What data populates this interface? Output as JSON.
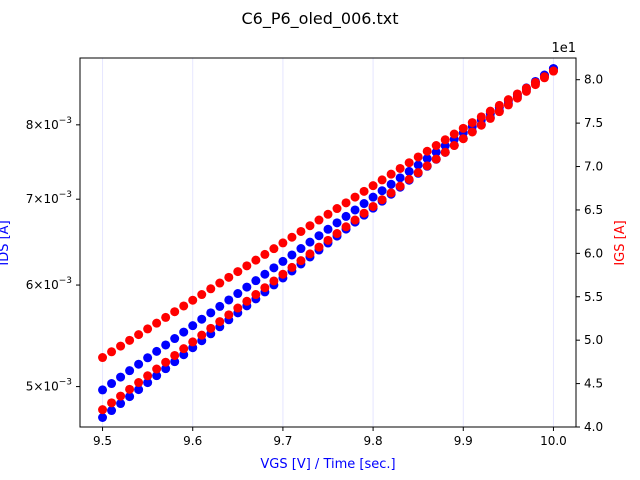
{
  "chart_data": {
    "type": "scatter",
    "title": "C6_P6_oled_006.txt",
    "xlabel": "VGS [V] / Time [sec.]",
    "ylabel_left": "IDS [A]",
    "ylabel_right": "IGS [A]",
    "right_axis_offset_label": "1e1",
    "xlim": [
      9.475,
      10.025
    ],
    "ylim_left": [
      0.00465,
      0.00902
    ],
    "ylim_left_scale": "log",
    "ylim_right": [
      4.0,
      8.25
    ],
    "grid": "vertical lines only at x ticks",
    "colors": {
      "left_axis_label": "#0000ff",
      "right_axis_label": "#ff0000",
      "ids_points": "#0000ff",
      "igs_points": "#ff0000",
      "gridline": "#e6e6ff"
    },
    "x_ticks": [
      {
        "value": 9.5,
        "label": "9.5"
      },
      {
        "value": 9.6,
        "label": "9.6"
      },
      {
        "value": 9.7,
        "label": "9.7"
      },
      {
        "value": 9.8,
        "label": "9.8"
      },
      {
        "value": 9.9,
        "label": "9.9"
      },
      {
        "value": 10.0,
        "label": "10.0"
      }
    ],
    "y_left_ticks": [
      {
        "value": 0.005,
        "mantissa": "5",
        "exponent": "−3"
      },
      {
        "value": 0.006,
        "mantissa": "6",
        "exponent": "−3"
      },
      {
        "value": 0.007,
        "mantissa": "7",
        "exponent": "−3"
      },
      {
        "value": 0.008,
        "mantissa": "8",
        "exponent": "−3"
      }
    ],
    "y_right_ticks": [
      {
        "value": 4.0,
        "label": "4.0"
      },
      {
        "value": 4.5,
        "label": "4.5"
      },
      {
        "value": 5.0,
        "label": "5.0"
      },
      {
        "value": 5.5,
        "label": "5.5"
      },
      {
        "value": 6.0,
        "label": "6.0"
      },
      {
        "value": 6.5,
        "label": "6.5"
      },
      {
        "value": 7.0,
        "label": "7.0"
      },
      {
        "value": 7.5,
        "label": "7.5"
      },
      {
        "value": 8.0,
        "label": "8.0"
      }
    ],
    "series": [
      {
        "axis": "left",
        "color": "#0000ff",
        "sweeps": [
          {
            "x_start": 9.5,
            "x_end": 10.0,
            "y_start": 0.00473,
            "y_end": 0.00885,
            "count": 51
          },
          {
            "x_start": 10.0,
            "x_end": 9.5,
            "y_start": 0.00885,
            "y_end": 0.00497,
            "count": 51
          }
        ]
      },
      {
        "axis": "right",
        "color": "#ff0000",
        "sweeps": [
          {
            "x_start": 9.5,
            "x_end": 10.0,
            "y_start": 4.2,
            "y_end": 8.1,
            "count": 51
          },
          {
            "x_start": 10.0,
            "x_end": 9.5,
            "y_start": 8.1,
            "y_end": 4.8,
            "count": 51
          }
        ]
      }
    ]
  }
}
